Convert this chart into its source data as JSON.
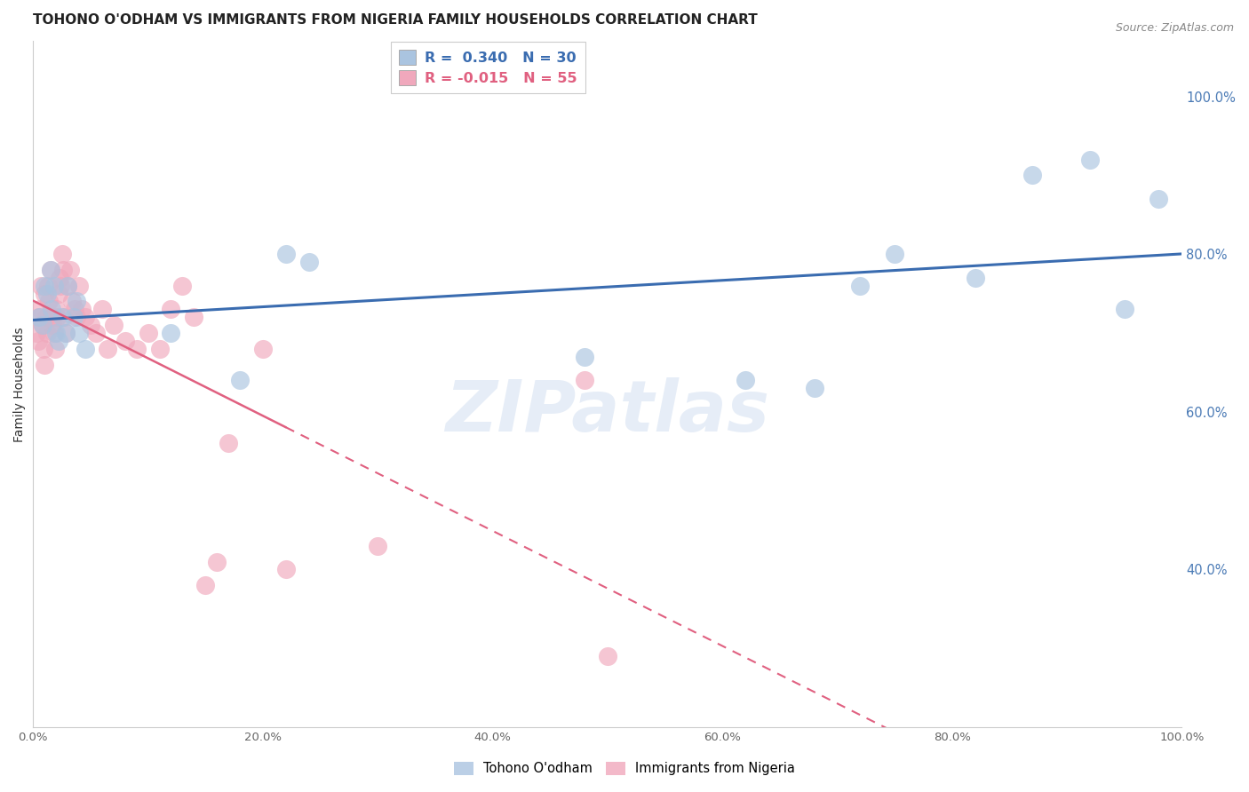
{
  "title": "TOHONO O'ODHAM VS IMMIGRANTS FROM NIGERIA FAMILY HOUSEHOLDS CORRELATION CHART",
  "source": "Source: ZipAtlas.com",
  "ylabel": "Family Households",
  "watermark": "ZIPatlas",
  "blue_R": 0.34,
  "blue_N": 30,
  "pink_R": -0.015,
  "pink_N": 55,
  "blue_color": "#aac4e0",
  "pink_color": "#f0a8bc",
  "blue_line_color": "#3a6cb0",
  "pink_line_color": "#e06080",
  "grid_color": "#cccccc",
  "right_axis_color": "#4a7ab5",
  "legend_blue_label": "Tohono O'odham",
  "legend_pink_label": "Immigrants from Nigeria",
  "blue_scatter_x": [
    0.005,
    0.008,
    0.01,
    0.012,
    0.015,
    0.016,
    0.018,
    0.02,
    0.022,
    0.025,
    0.028,
    0.03,
    0.035,
    0.038,
    0.04,
    0.045,
    0.12,
    0.18,
    0.22,
    0.24,
    0.48,
    0.62,
    0.68,
    0.72,
    0.75,
    0.82,
    0.87,
    0.92,
    0.95,
    0.98
  ],
  "blue_scatter_y": [
    0.72,
    0.71,
    0.76,
    0.75,
    0.78,
    0.73,
    0.76,
    0.7,
    0.69,
    0.72,
    0.7,
    0.76,
    0.72,
    0.74,
    0.7,
    0.68,
    0.7,
    0.64,
    0.8,
    0.79,
    0.67,
    0.64,
    0.63,
    0.76,
    0.8,
    0.77,
    0.9,
    0.92,
    0.73,
    0.87
  ],
  "pink_scatter_x": [
    0.003,
    0.004,
    0.005,
    0.006,
    0.007,
    0.008,
    0.009,
    0.01,
    0.01,
    0.011,
    0.012,
    0.013,
    0.014,
    0.015,
    0.016,
    0.017,
    0.018,
    0.019,
    0.02,
    0.021,
    0.022,
    0.023,
    0.024,
    0.025,
    0.026,
    0.027,
    0.028,
    0.03,
    0.032,
    0.034,
    0.036,
    0.038,
    0.04,
    0.042,
    0.045,
    0.05,
    0.055,
    0.06,
    0.065,
    0.07,
    0.08,
    0.09,
    0.1,
    0.11,
    0.12,
    0.13,
    0.14,
    0.15,
    0.16,
    0.17,
    0.2,
    0.22,
    0.3,
    0.48,
    0.5
  ],
  "pink_scatter_y": [
    0.7,
    0.69,
    0.72,
    0.73,
    0.76,
    0.71,
    0.68,
    0.75,
    0.66,
    0.72,
    0.7,
    0.76,
    0.74,
    0.78,
    0.72,
    0.71,
    0.7,
    0.68,
    0.73,
    0.72,
    0.75,
    0.77,
    0.76,
    0.8,
    0.78,
    0.72,
    0.7,
    0.76,
    0.78,
    0.74,
    0.73,
    0.72,
    0.76,
    0.73,
    0.72,
    0.71,
    0.7,
    0.73,
    0.68,
    0.71,
    0.69,
    0.68,
    0.7,
    0.68,
    0.73,
    0.76,
    0.72,
    0.38,
    0.41,
    0.56,
    0.68,
    0.4,
    0.43,
    0.64,
    0.29
  ],
  "xlim": [
    0.0,
    1.0
  ],
  "ylim": [
    0.2,
    1.07
  ],
  "right_ytick_vals": [
    0.4,
    0.6,
    0.8,
    1.0
  ],
  "right_yticklabels": [
    "40.0%",
    "60.0%",
    "80.0%",
    "100.0%"
  ],
  "xtick_vals": [
    0.0,
    0.2,
    0.4,
    0.6,
    0.8,
    1.0
  ],
  "xtick_labels": [
    "0.0%",
    "20.0%",
    "40.0%",
    "60.0%",
    "80.0%",
    "100.0%"
  ],
  "title_fontsize": 11,
  "source_fontsize": 9,
  "background_color": "#ffffff"
}
